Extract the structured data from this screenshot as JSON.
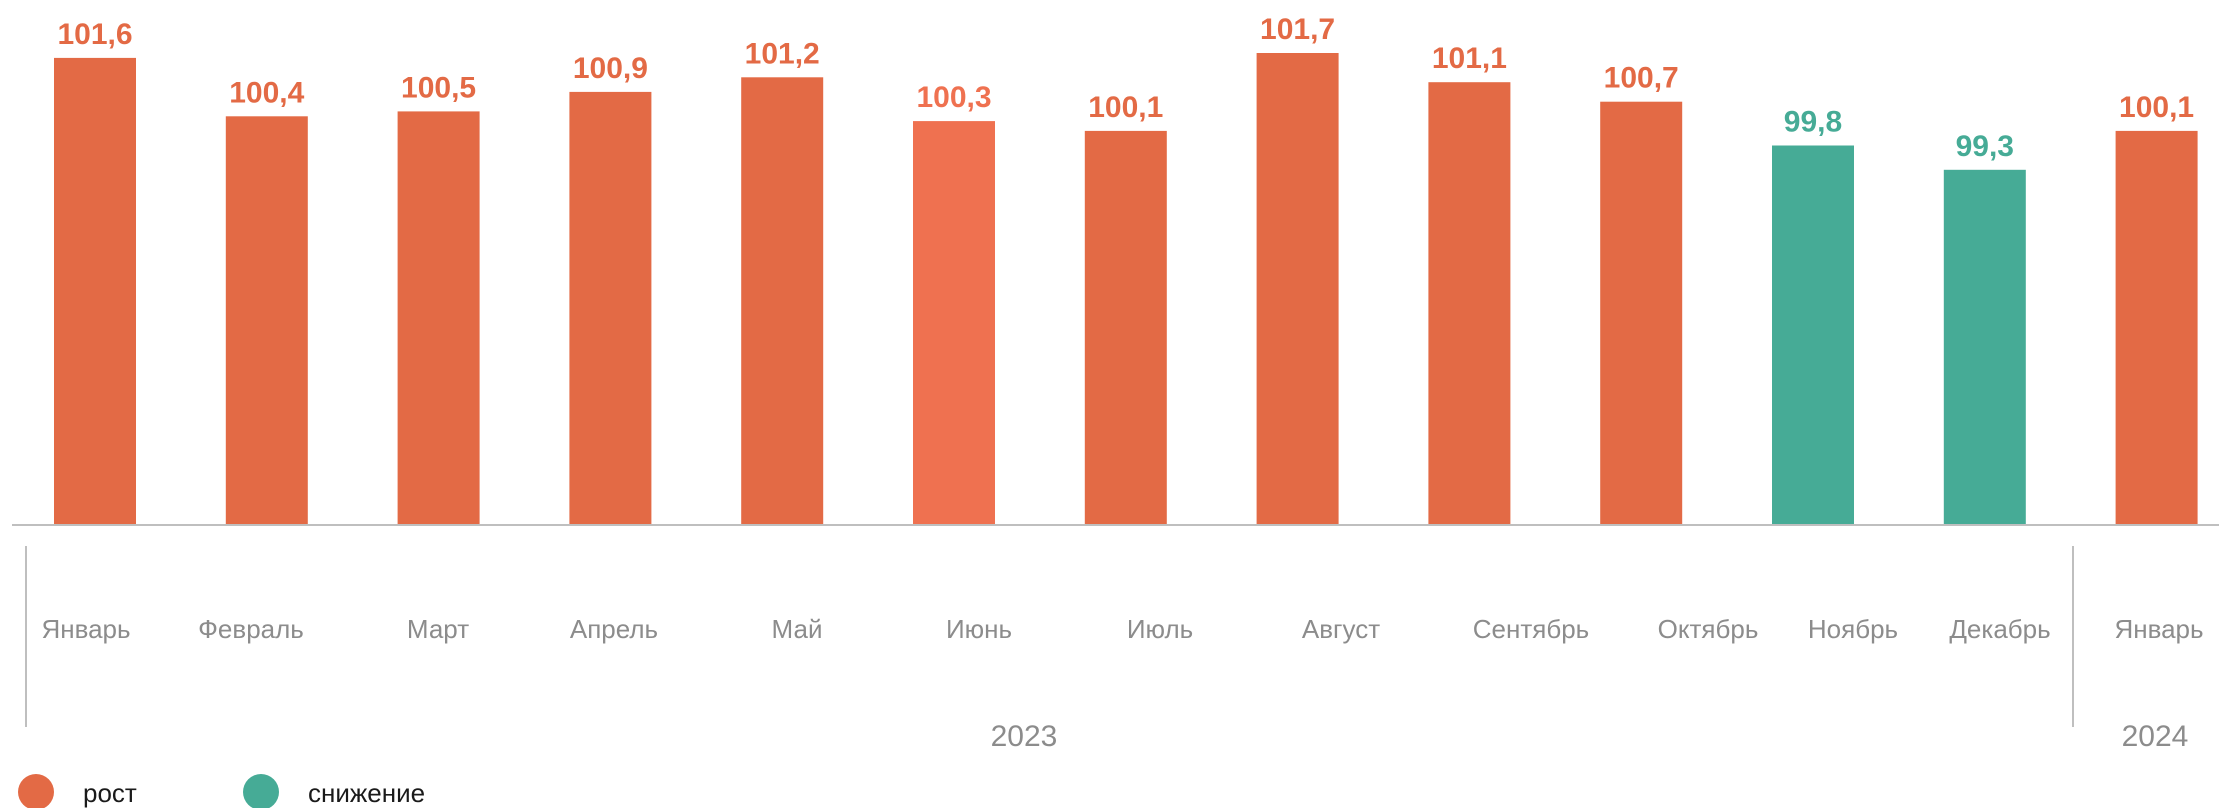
{
  "chart_data": {
    "type": "bar",
    "categories": [
      "Январь",
      "Февраль",
      "Март",
      "Апрель",
      "Май",
      "Июнь",
      "Июль",
      "Август",
      "Сентябрь",
      "Октябрь",
      "Ноябрь",
      "Декабрь",
      "Январь"
    ],
    "values": [
      101.6,
      100.4,
      100.5,
      100.9,
      101.2,
      100.3,
      100.1,
      101.7,
      101.1,
      100.7,
      99.8,
      99.3,
      100.1
    ],
    "value_labels": [
      "101,6",
      "100,4",
      "100,5",
      "100,9",
      "101,2",
      "100,3",
      "100,1",
      "101,7",
      "101,1",
      "100,7",
      "99,8",
      "99,3",
      "100,1"
    ],
    "bar_status": [
      "рост",
      "рост",
      "рост",
      "рост",
      "рост",
      "рост",
      "рост",
      "рост",
      "рост",
      "рост",
      "снижение",
      "снижение",
      "рост"
    ],
    "year_groups": [
      {
        "label": "2023",
        "start": 0,
        "end": 11
      },
      {
        "label": "2024",
        "start": 12,
        "end": 12
      }
    ],
    "ylim": [
      92,
      102
    ],
    "grid": false,
    "legend": {
      "placement": "bottom-left",
      "items": [
        {
          "label": "рост",
          "color": "#e36a45"
        },
        {
          "label": "снижение",
          "color": "#46ab96"
        }
      ]
    },
    "colors": {
      "growth": "#e36a45",
      "growth_highlight": "#ef7150",
      "decline": "#46ab96",
      "axis": "#bfbfbf",
      "category_text": "#8c8c8c"
    }
  }
}
